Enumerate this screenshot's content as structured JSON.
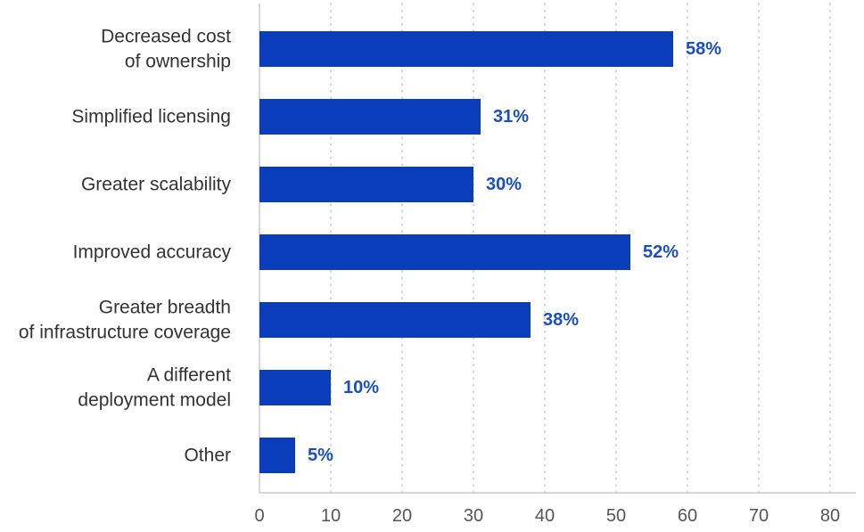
{
  "chart_data": {
    "type": "bar",
    "orientation": "horizontal",
    "categories": [
      [
        "Decreased cost",
        "of ownership"
      ],
      [
        "Simplified licensing"
      ],
      [
        "Greater scalability"
      ],
      [
        "Improved accuracy"
      ],
      [
        "Greater breadth",
        "of infrastructure coverage"
      ],
      [
        "A different",
        "deployment model"
      ],
      [
        "Other"
      ]
    ],
    "values": [
      58,
      31,
      30,
      52,
      38,
      10,
      5
    ],
    "value_labels": [
      "58%",
      "31%",
      "30%",
      "52%",
      "38%",
      "10%",
      "5%"
    ],
    "title": "",
    "xlabel": "",
    "ylabel": "",
    "xlim": [
      0,
      80
    ],
    "xticks": [
      0,
      10,
      20,
      30,
      40,
      50,
      60,
      70,
      80
    ],
    "grid": "vertical-dotted",
    "legend": "none",
    "colors": {
      "bar": "#0a3dbc",
      "value_label": "#1a4fc4",
      "grid": "#c8c8c8",
      "axis": "#cccccc"
    }
  }
}
